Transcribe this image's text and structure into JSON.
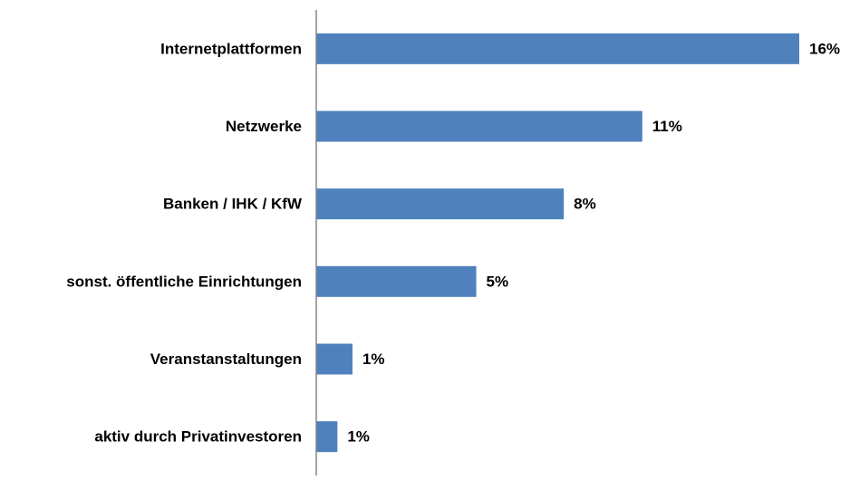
{
  "chart_data": {
    "type": "bar",
    "orientation": "horizontal",
    "categories": [
      "Internetplattformen",
      "Netzwerke",
      "Banken / IHK / KfW",
      "sonst. öffentliche Einrichtungen",
      "Veranstanstaltungen",
      "aktiv durch Privatinvestoren"
    ],
    "values": [
      16,
      10.8,
      8.2,
      5.3,
      1.2,
      0.7
    ],
    "value_labels": [
      "16%",
      "11%",
      "8%",
      "5%",
      "1%",
      "1%"
    ],
    "color": "#4f81bd",
    "xlim": [
      0,
      16
    ]
  }
}
